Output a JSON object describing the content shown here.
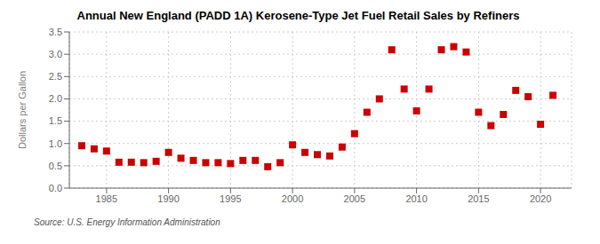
{
  "chart_data": {
    "type": "scatter",
    "title": "Annual New England (PADD 1A) Kerosene-Type Jet Fuel Retail Sales by Refiners",
    "ylabel": "Dollars per Gallon",
    "annotation": "Source: U.S. Energy Information Administration",
    "x": [
      1983,
      1984,
      1985,
      1986,
      1987,
      1988,
      1989,
      1990,
      1991,
      1992,
      1993,
      1994,
      1995,
      1996,
      1997,
      1998,
      1999,
      2000,
      2001,
      2002,
      2003,
      2004,
      2005,
      2006,
      2007,
      2008,
      2009,
      2010,
      2011,
      2012,
      2013,
      2014,
      2015,
      2016,
      2017,
      2018,
      2019,
      2020,
      2021
    ],
    "values": [
      0.95,
      0.88,
      0.83,
      0.58,
      0.58,
      0.57,
      0.6,
      0.8,
      0.67,
      0.62,
      0.57,
      0.57,
      0.55,
      0.62,
      0.62,
      0.48,
      0.57,
      0.97,
      0.8,
      0.75,
      0.72,
      0.92,
      1.22,
      1.7,
      2.0,
      3.1,
      2.22,
      1.73,
      2.22,
      3.1,
      3.17,
      3.05,
      1.7,
      1.4,
      1.65,
      2.19,
      2.05,
      1.43,
      2.08
    ],
    "color": "#cc0000",
    "marker": "square",
    "xlim": [
      1982,
      2022.5
    ],
    "ylim": [
      0.0,
      3.5
    ],
    "xticks": [
      1985,
      1990,
      1995,
      2000,
      2005,
      2010,
      2015,
      2020
    ],
    "yticks": [
      {
        "value": 0,
        "label": "0.0"
      },
      0.5,
      {
        "value": 1,
        "label": "1.0"
      },
      1.5,
      {
        "value": 2,
        "label": "2.0"
      },
      2.5,
      {
        "value": 3,
        "label": "3.0"
      },
      3.5
    ],
    "grid": true
  }
}
